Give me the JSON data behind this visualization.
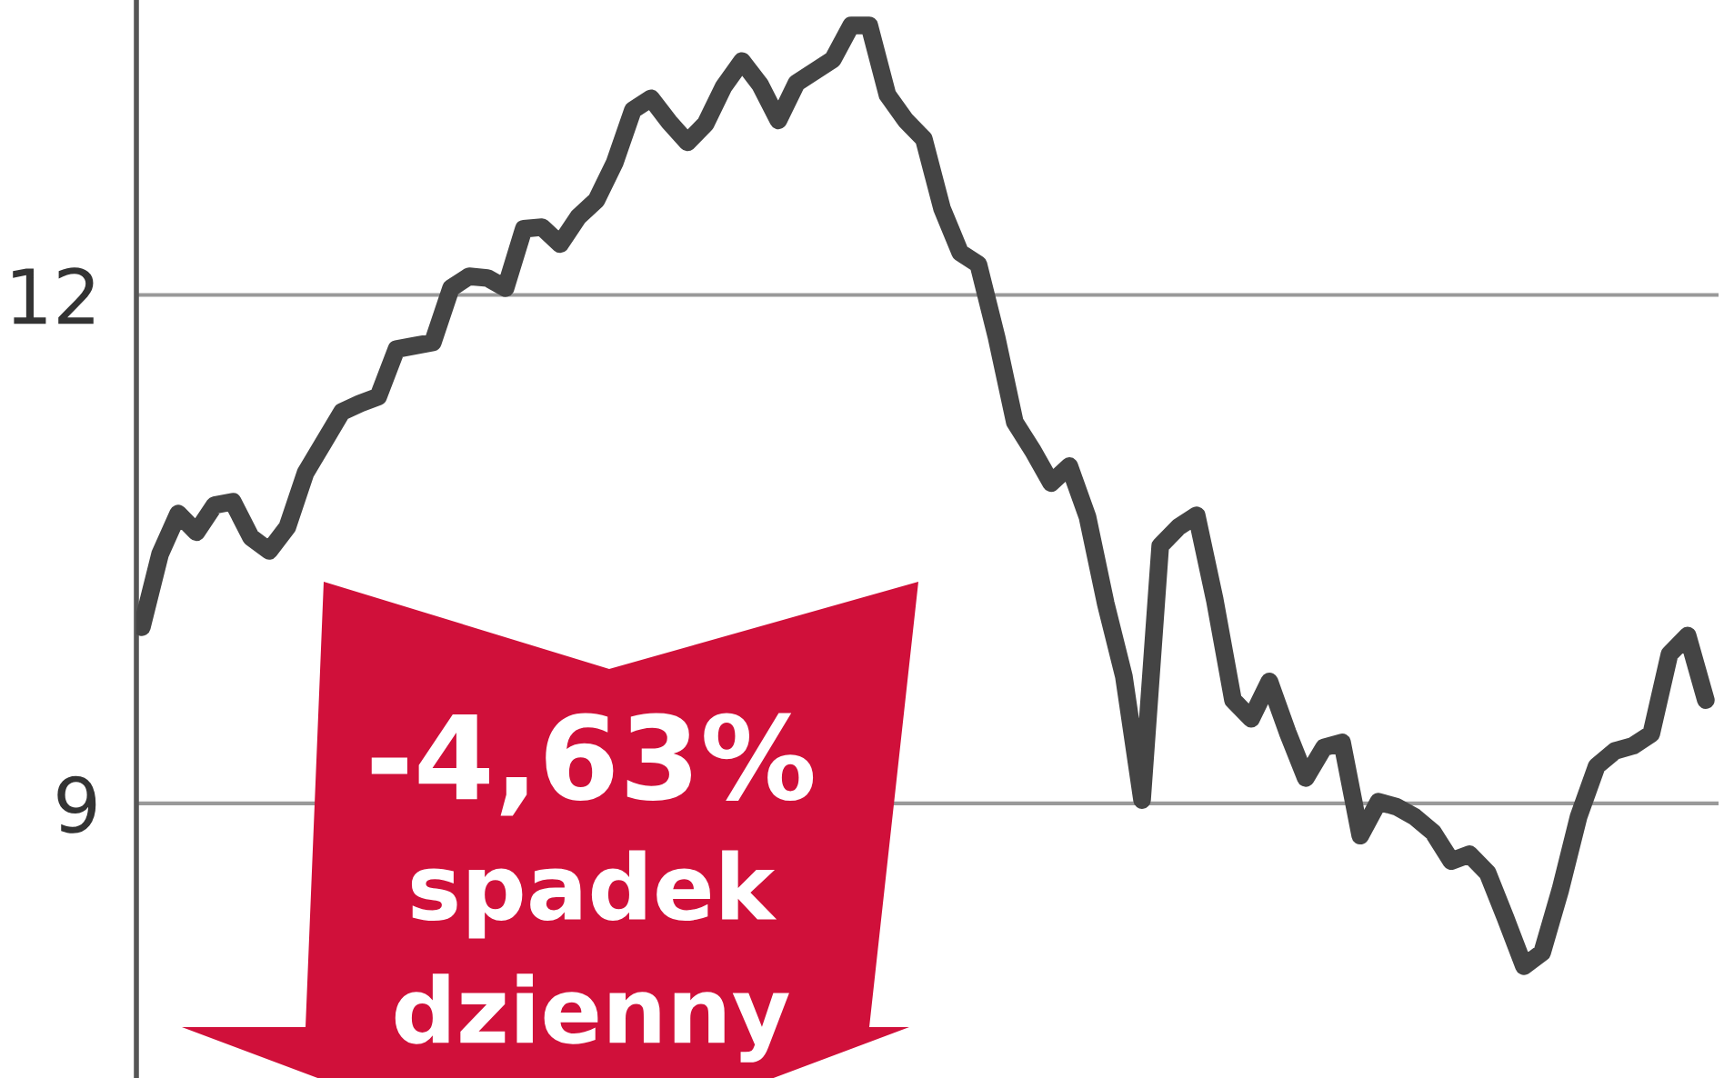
{
  "chart_data": {
    "type": "line",
    "categories": [
      null,
      null,
      null,
      null,
      null,
      null,
      null,
      null,
      null,
      null,
      null,
      null,
      null,
      null,
      null,
      null,
      null,
      null,
      null,
      null,
      null,
      null,
      null,
      null,
      null,
      null,
      null,
      null,
      null,
      null,
      null,
      null,
      null,
      null,
      null,
      null,
      null,
      null,
      null,
      null,
      null,
      null,
      null,
      null,
      null,
      null,
      null,
      null,
      null,
      null,
      null,
      null,
      null,
      null,
      null,
      null,
      null,
      null,
      null,
      null,
      null,
      null,
      null,
      null,
      null,
      null,
      null,
      null,
      null,
      null,
      null,
      null,
      null,
      null,
      null,
      null,
      null,
      null,
      null,
      null,
      null,
      null,
      null,
      null,
      null,
      null,
      null
    ],
    "series": [
      {
        "color": "#444444",
        "values": [
          10.04,
          10.47,
          10.71,
          10.6,
          10.76,
          10.78,
          10.57,
          10.49,
          10.63,
          10.95,
          11.13,
          11.31,
          11.36,
          11.4,
          11.68,
          11.7,
          11.72,
          12.04,
          12.11,
          12.1,
          12.04,
          12.39,
          12.4,
          12.3,
          12.46,
          12.56,
          12.78,
          13.09,
          13.16,
          13.02,
          12.9,
          13.01,
          13.23,
          13.38,
          13.24,
          13.03,
          13.25,
          13.32,
          13.39,
          13.59,
          13.59,
          13.18,
          13.03,
          12.92,
          12.51,
          12.25,
          12.18,
          11.75,
          11.25,
          11.08,
          10.89,
          10.99,
          10.69,
          10.18,
          9.75,
          9.02,
          10.52,
          10.63,
          10.7,
          10.2,
          9.61,
          9.5,
          9.72,
          9.42,
          9.15,
          9.33,
          9.36,
          8.81,
          9.01,
          8.98,
          8.92,
          8.83,
          8.66,
          8.7,
          8.59,
          8.32,
          8.04,
          8.12,
          8.49,
          8.92,
          9.22,
          9.31,
          9.34,
          9.41,
          9.88,
          9.99,
          9.61
        ]
      }
    ],
    "ylim": [
      7.38,
      13.74
    ],
    "yticks": [
      9,
      12
    ],
    "grid": "y",
    "tick_labels": "y",
    "annotations": [
      "-4,63%",
      "spadek",
      "dzienny"
    ]
  }
}
